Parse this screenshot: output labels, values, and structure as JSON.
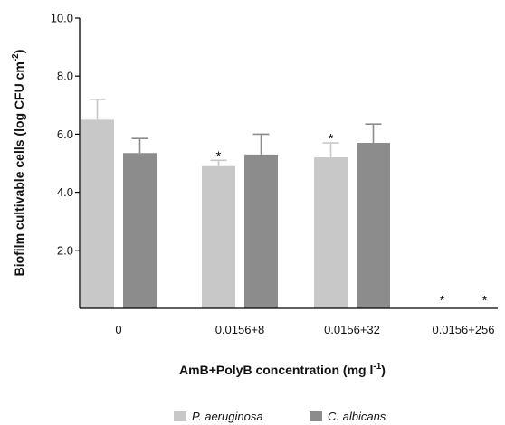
{
  "chart_data": {
    "type": "bar",
    "categories": [
      "0",
      "0.0156+8",
      "0.0156+32",
      "0.0156+256"
    ],
    "series": [
      {
        "name": "P. aeruginosa",
        "color": "#c8c8c8",
        "values": [
          6.5,
          4.9,
          5.2,
          0
        ],
        "errors": [
          0.7,
          0.2,
          0.5,
          0
        ],
        "significance": [
          "",
          "*",
          "*",
          "*"
        ]
      },
      {
        "name": "C. albicans",
        "color": "#8c8c8c",
        "values": [
          5.35,
          5.3,
          5.7,
          0
        ],
        "errors": [
          0.5,
          0.7,
          0.65,
          0
        ],
        "significance": [
          "",
          "",
          "",
          "*"
        ]
      }
    ],
    "xlabel": "AmB+PolyB concentration (mg l",
    "xlabel_sup": "-1",
    "xlabel_end": ")",
    "ylabel": "Biofilm cultivable cells (log CFU cm",
    "ylabel_sup": "-2",
    "ylabel_end": ")",
    "ylim": [
      0,
      10
    ],
    "yticks": [
      {
        "value": 2,
        "label": "2.0"
      },
      {
        "value": 4,
        "label": "4.0"
      },
      {
        "value": 6,
        "label": "6.0"
      },
      {
        "value": 8,
        "label": "8.0"
      },
      {
        "value": 10,
        "label": "10.0"
      }
    ],
    "grid": false,
    "legend": "bottom"
  }
}
